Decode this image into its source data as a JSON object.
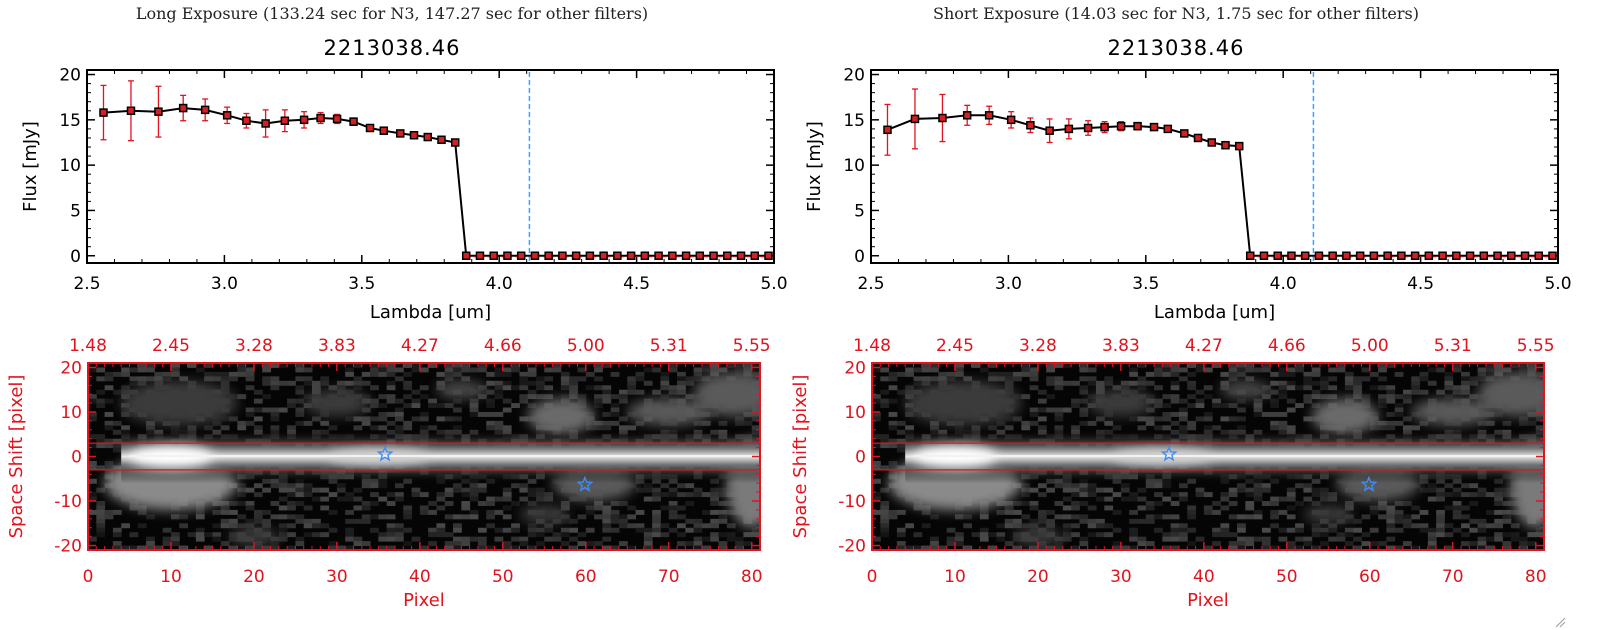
{
  "panels": [
    {
      "exposure_title": "Long Exposure (133.24 sec for N3, 147.27 sec for other filters)",
      "object_title": "2213038.46",
      "spectrum": {
        "xlabel": "Lambda [um]",
        "ylabel": "Flux [mJy]",
        "ylim": [
          -0.8,
          20.5
        ],
        "xlim": [
          2.5,
          5.0
        ],
        "yticks": [
          "0",
          "5",
          "10",
          "15",
          "20"
        ],
        "xticks": [
          "2.5",
          "3.0",
          "3.5",
          "4.0",
          "4.5",
          "5.0"
        ],
        "vline_x": 4.11,
        "x": [
          2.56,
          2.66,
          2.76,
          2.85,
          2.93,
          3.01,
          3.08,
          3.15,
          3.22,
          3.29,
          3.35,
          3.41,
          3.47,
          3.53,
          3.58,
          3.64,
          3.69,
          3.74,
          3.79,
          3.84,
          3.88,
          3.93,
          3.98,
          4.03,
          4.08,
          4.13,
          4.18,
          4.23,
          4.28,
          4.33,
          4.38,
          4.43,
          4.48,
          4.53,
          4.58,
          4.63,
          4.68,
          4.73,
          4.78,
          4.83,
          4.88,
          4.93,
          4.98
        ],
        "y": [
          15.8,
          16.0,
          15.9,
          16.3,
          16.1,
          15.5,
          14.9,
          14.6,
          14.9,
          15.0,
          15.2,
          15.1,
          14.8,
          14.1,
          13.8,
          13.5,
          13.3,
          13.1,
          12.8,
          12.5,
          0,
          0,
          0,
          0,
          0,
          0,
          0,
          0,
          0,
          0,
          0,
          0,
          0,
          0,
          0,
          0,
          0,
          0,
          0,
          0,
          0,
          0,
          0
        ],
        "err": [
          3.0,
          3.3,
          2.8,
          1.4,
          1.2,
          0.9,
          0.8,
          1.5,
          1.2,
          0.9,
          0.6,
          0.5,
          0.4,
          0.3,
          0.2,
          0.2,
          0.2,
          0.2,
          0.2,
          0.2,
          0,
          0,
          0,
          0,
          0,
          0,
          0,
          0,
          0,
          0,
          0,
          0,
          0,
          0,
          0,
          0,
          0,
          0,
          0,
          0,
          0,
          0,
          0
        ]
      },
      "image": {
        "xlabel": "Pixel",
        "ylabel": "Space Shift [pixel]",
        "bottom_ticks": [
          "0",
          "10",
          "20",
          "30",
          "40",
          "50",
          "60",
          "70",
          "80"
        ],
        "top_ticks": [
          "1.48",
          "2.45",
          "3.28",
          "3.83",
          "4.27",
          "4.66",
          "5.00",
          "5.31",
          "5.55"
        ],
        "left_ticks": [
          "20",
          "10",
          "0",
          "-10",
          "-20"
        ],
        "markers": [
          {
            "x": 35.8,
            "y": 0.5
          },
          {
            "x": 59.9,
            "y": -6.3
          }
        ],
        "aperture": [
          -3.0,
          3.0
        ]
      }
    },
    {
      "exposure_title": "Short Exposure (14.03 sec for N3, 1.75 sec for other filters)",
      "object_title": "2213038.46",
      "spectrum": {
        "xlabel": "Lambda [um]",
        "ylabel": "Flux [mJy]",
        "ylim": [
          -0.8,
          20.5
        ],
        "xlim": [
          2.5,
          5.0
        ],
        "yticks": [
          "0",
          "5",
          "10",
          "15",
          "20"
        ],
        "xticks": [
          "2.5",
          "3.0",
          "3.5",
          "4.0",
          "4.5",
          "5.0"
        ],
        "vline_x": 4.11,
        "x": [
          2.56,
          2.66,
          2.76,
          2.85,
          2.93,
          3.01,
          3.08,
          3.15,
          3.22,
          3.29,
          3.35,
          3.41,
          3.47,
          3.53,
          3.58,
          3.64,
          3.69,
          3.74,
          3.79,
          3.84,
          3.88,
          3.93,
          3.98,
          4.03,
          4.08,
          4.13,
          4.18,
          4.23,
          4.28,
          4.33,
          4.38,
          4.43,
          4.48,
          4.53,
          4.58,
          4.63,
          4.68,
          4.73,
          4.78,
          4.83,
          4.88,
          4.93,
          4.98
        ],
        "y": [
          13.9,
          15.1,
          15.2,
          15.5,
          15.5,
          15.0,
          14.4,
          13.8,
          14.0,
          14.1,
          14.2,
          14.3,
          14.3,
          14.2,
          14.0,
          13.5,
          13.0,
          12.5,
          12.2,
          12.1,
          0,
          0,
          0,
          0,
          0,
          0,
          0,
          0,
          0,
          0,
          0,
          0,
          0,
          0,
          0,
          0,
          0,
          0,
          0,
          0,
          0,
          0,
          0
        ],
        "err": [
          2.8,
          3.3,
          2.6,
          1.1,
          1.0,
          0.9,
          0.8,
          1.3,
          1.1,
          0.8,
          0.6,
          0.5,
          0.4,
          0.3,
          0.2,
          0.2,
          0.2,
          0.2,
          0.2,
          0.2,
          0,
          0,
          0,
          0,
          0,
          0,
          0,
          0,
          0,
          0,
          0,
          0,
          0,
          0,
          0,
          0,
          0,
          0,
          0,
          0,
          0,
          0,
          0
        ]
      },
      "image": {
        "xlabel": "Pixel",
        "ylabel": "Space Shift [pixel]",
        "bottom_ticks": [
          "0",
          "10",
          "20",
          "30",
          "40",
          "50",
          "60",
          "70",
          "80"
        ],
        "top_ticks": [
          "1.48",
          "2.45",
          "3.28",
          "3.83",
          "4.27",
          "4.66",
          "5.00",
          "5.31",
          "5.55"
        ],
        "left_ticks": [
          "20",
          "10",
          "0",
          "-10",
          "-20"
        ],
        "markers": [
          {
            "x": 35.8,
            "y": 0.5
          },
          {
            "x": 59.9,
            "y": -6.3
          }
        ],
        "aperture": [
          -3.0,
          3.0
        ]
      }
    }
  ],
  "chart_data": [
    {
      "type": "line",
      "title": "2213038.46",
      "subtitle": "Long Exposure (133.24 sec for N3, 147.27 sec for other filters)",
      "xlabel": "Lambda [um]",
      "ylabel": "Flux [mJy]",
      "xlim": [
        2.5,
        5.0
      ],
      "ylim": [
        -0.8,
        20.5
      ]
    },
    {
      "type": "heatmap",
      "xlabel": "Pixel",
      "ylabel": "Space Shift [pixel]",
      "xlim": [
        0,
        81
      ],
      "ylim": [
        -21,
        21
      ]
    },
    {
      "type": "line",
      "title": "2213038.46",
      "subtitle": "Short Exposure (14.03 sec for N3, 1.75 sec for other filters)",
      "xlabel": "Lambda [um]",
      "ylabel": "Flux [mJy]",
      "xlim": [
        2.5,
        5.0
      ],
      "ylim": [
        -0.8,
        20.5
      ]
    },
    {
      "type": "heatmap",
      "xlabel": "Pixel",
      "ylabel": "Space Shift [pixel]",
      "xlim": [
        0,
        81
      ],
      "ylim": [
        -21,
        21
      ]
    }
  ],
  "colors": {
    "axis_black": "#000000",
    "axis_red": "#e0141e",
    "errorbar_red": "#e0141e",
    "marker_fill": "#d42020",
    "vline_blue": "#3ea0ff",
    "star_blue": "#3e8ef0",
    "aperture_red": "#e0141e"
  }
}
